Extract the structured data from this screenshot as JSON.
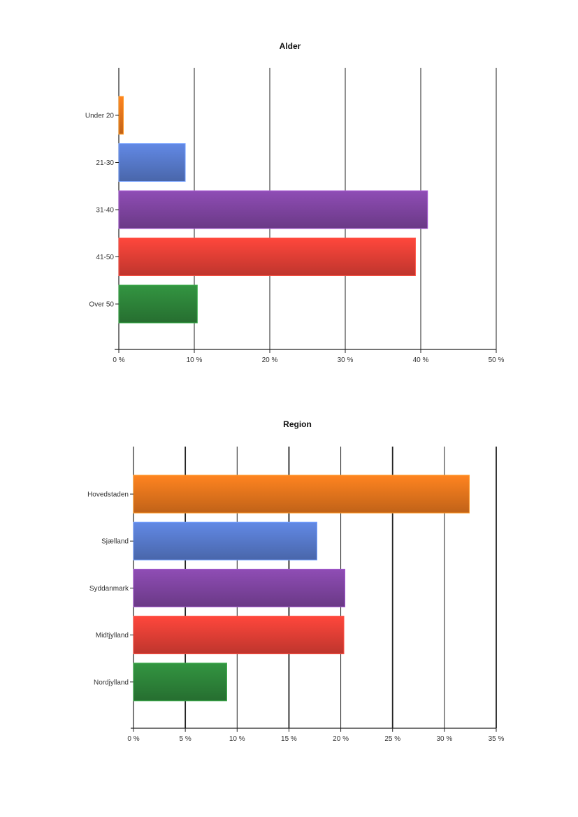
{
  "chart_data": [
    {
      "type": "bar",
      "orientation": "horizontal",
      "title": "Alder",
      "categories": [
        "Under 20",
        "21-30",
        "31-40",
        "41-50",
        "Over 50"
      ],
      "values": [
        0.6,
        8.8,
        40.9,
        39.3,
        10.4
      ],
      "colors": [
        "#f07a1e",
        "#5b7fd4",
        "#8447a8",
        "#ee4238",
        "#2f8a3c"
      ],
      "xlim": [
        0,
        50
      ],
      "xticks": [
        "0 %",
        "10 %",
        "20 %",
        "30 %",
        "40 %",
        "50 %"
      ],
      "grid": true
    },
    {
      "type": "bar",
      "orientation": "horizontal",
      "title": "Region",
      "categories": [
        "Hovedstaden",
        "Sjælland",
        "Syddanmark",
        "Midtjylland",
        "Nordjylland"
      ],
      "values": [
        32.4,
        17.7,
        20.4,
        20.3,
        9.0
      ],
      "colors": [
        "#f07a1e",
        "#5b7fd4",
        "#8447a8",
        "#ee4238",
        "#2f8a3c"
      ],
      "xlim": [
        0,
        35
      ],
      "xticks": [
        "0 %",
        "5 %",
        "10 %",
        "15 %",
        "20 %",
        "25 %",
        "30 %",
        "35 %"
      ],
      "grid": true
    }
  ]
}
